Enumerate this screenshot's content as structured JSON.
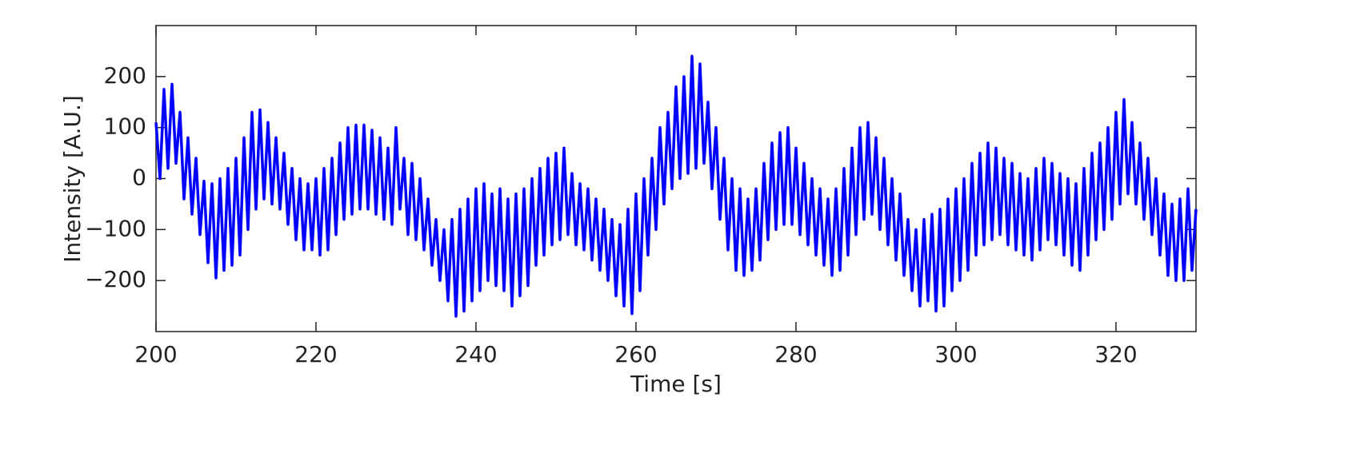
{
  "chart_data": {
    "type": "line",
    "xlabel": "Time [s]",
    "ylabel": "Intensity [A.U.]",
    "color": "#0000ff",
    "xlim": [
      200,
      330
    ],
    "ylim": [
      -300,
      300
    ],
    "xticks": [
      200,
      220,
      240,
      260,
      280,
      300,
      320
    ],
    "yticks": [
      {
        "value": -200,
        "label": "−200"
      },
      {
        "value": -100,
        "label": "−100"
      },
      0,
      100,
      200
    ],
    "grid": false,
    "x": [
      200,
      200.5,
      201,
      201.5,
      202,
      202.5,
      203,
      203.5,
      204,
      204.5,
      205,
      205.5,
      206,
      206.5,
      207,
      207.5,
      208,
      208.5,
      209,
      209.5,
      210,
      210.5,
      211,
      211.5,
      212,
      212.5,
      213,
      213.5,
      214,
      214.5,
      215,
      215.5,
      216,
      216.5,
      217,
      217.5,
      218,
      218.5,
      219,
      219.5,
      220,
      220.5,
      221,
      221.5,
      222,
      222.5,
      223,
      223.5,
      224,
      224.5,
      225,
      225.5,
      226,
      226.5,
      227,
      227.5,
      228,
      228.5,
      229,
      229.5,
      230,
      230.5,
      231,
      231.5,
      232,
      232.5,
      233,
      233.5,
      234,
      234.5,
      235,
      235.5,
      236,
      236.5,
      237,
      237.5,
      238,
      238.5,
      239,
      239.5,
      240,
      240.5,
      241,
      241.5,
      242,
      242.5,
      243,
      243.5,
      244,
      244.5,
      245,
      245.5,
      246,
      246.5,
      247,
      247.5,
      248,
      248.5,
      249,
      249.5,
      250,
      250.5,
      251,
      251.5,
      252,
      252.5,
      253,
      253.5,
      254,
      254.5,
      255,
      255.5,
      256,
      256.5,
      257,
      257.5,
      258,
      258.5,
      259,
      259.5,
      260,
      260.5,
      261,
      261.5,
      262,
      262.5,
      263,
      263.5,
      264,
      264.5,
      265,
      265.5,
      266,
      266.5,
      267,
      267.5,
      268,
      268.5,
      269,
      269.5,
      270,
      270.5,
      271,
      271.5,
      272,
      272.5,
      273,
      273.5,
      274,
      274.5,
      275,
      275.5,
      276,
      276.5,
      277,
      277.5,
      278,
      278.5,
      279,
      279.5,
      280,
      280.5,
      281,
      281.5,
      282,
      282.5,
      283,
      283.5,
      284,
      284.5,
      285,
      285.5,
      286,
      286.5,
      287,
      287.5,
      288,
      288.5,
      289,
      289.5,
      290,
      290.5,
      291,
      291.5,
      292,
      292.5,
      293,
      293.5,
      294,
      294.5,
      295,
      295.5,
      296,
      296.5,
      297,
      297.5,
      298,
      298.5,
      299,
      299.5,
      300,
      300.5,
      301,
      301.5,
      302,
      302.5,
      303,
      303.5,
      304,
      304.5,
      305,
      305.5,
      306,
      306.5,
      307,
      307.5,
      308,
      308.5,
      309,
      309.5,
      310,
      310.5,
      311,
      311.5,
      312,
      312.5,
      313,
      313.5,
      314,
      314.5,
      315,
      315.5,
      316,
      316.5,
      317,
      317.5,
      318,
      318.5,
      319,
      319.5,
      320,
      320.5,
      321,
      321.5,
      322,
      322.5,
      323,
      323.5,
      324,
      324.5,
      325,
      325.5,
      326,
      326.5,
      327,
      327.5,
      328,
      328.5,
      329,
      329.5,
      330
    ],
    "values": [
      110,
      0,
      175,
      20,
      185,
      30,
      130,
      -40,
      80,
      -70,
      40,
      -110,
      -5,
      -165,
      -10,
      -195,
      0,
      -180,
      20,
      -170,
      40,
      -150,
      80,
      -100,
      130,
      -60,
      135,
      -40,
      110,
      -50,
      80,
      -60,
      50,
      -90,
      20,
      -120,
      0,
      -140,
      -10,
      -140,
      0,
      -150,
      20,
      -140,
      40,
      -110,
      70,
      -80,
      100,
      -70,
      105,
      -60,
      105,
      -60,
      95,
      -70,
      80,
      -80,
      60,
      -90,
      100,
      -60,
      40,
      -110,
      30,
      -120,
      0,
      -140,
      -40,
      -170,
      -80,
      -200,
      -100,
      -240,
      -80,
      -270,
      -60,
      -260,
      -40,
      -240,
      -20,
      -220,
      -10,
      -200,
      -30,
      -210,
      -20,
      -220,
      -40,
      -250,
      -30,
      -230,
      -20,
      -210,
      0,
      -170,
      20,
      -150,
      40,
      -130,
      50,
      -120,
      60,
      -110,
      10,
      -130,
      -10,
      -140,
      -20,
      -160,
      -40,
      -180,
      -60,
      -200,
      -80,
      -230,
      -90,
      -250,
      -60,
      -265,
      -30,
      -220,
      0,
      -150,
      40,
      -100,
      100,
      -50,
      130,
      -20,
      180,
      0,
      200,
      10,
      240,
      20,
      225,
      30,
      150,
      -20,
      100,
      -80,
      40,
      -140,
      0,
      -180,
      -20,
      -190,
      -40,
      -180,
      -20,
      -160,
      30,
      -120,
      70,
      -100,
      90,
      -90,
      100,
      -90,
      60,
      -110,
      30,
      -130,
      0,
      -150,
      -20,
      -170,
      -40,
      -190,
      -20,
      -180,
      20,
      -150,
      60,
      -110,
      100,
      -80,
      110,
      -70,
      80,
      -100,
      40,
      -130,
      0,
      -160,
      -30,
      -190,
      -80,
      -220,
      -100,
      -250,
      -80,
      -240,
      -70,
      -260,
      -60,
      -250,
      -40,
      -220,
      -20,
      -200,
      0,
      -180,
      30,
      -150,
      50,
      -130,
      70,
      -120,
      60,
      -110,
      40,
      -130,
      30,
      -140,
      10,
      -150,
      0,
      -160,
      20,
      -140,
      40,
      -120,
      30,
      -130,
      10,
      -150,
      0,
      -170,
      -10,
      -180,
      20,
      -150,
      50,
      -120,
      70,
      -100,
      100,
      -80,
      130,
      -50,
      155,
      -30,
      110,
      -50,
      70,
      -80,
      40,
      -110,
      0,
      -150,
      -30,
      -190,
      -50,
      -200,
      -40,
      -200,
      -20,
      -180,
      -60
    ]
  }
}
